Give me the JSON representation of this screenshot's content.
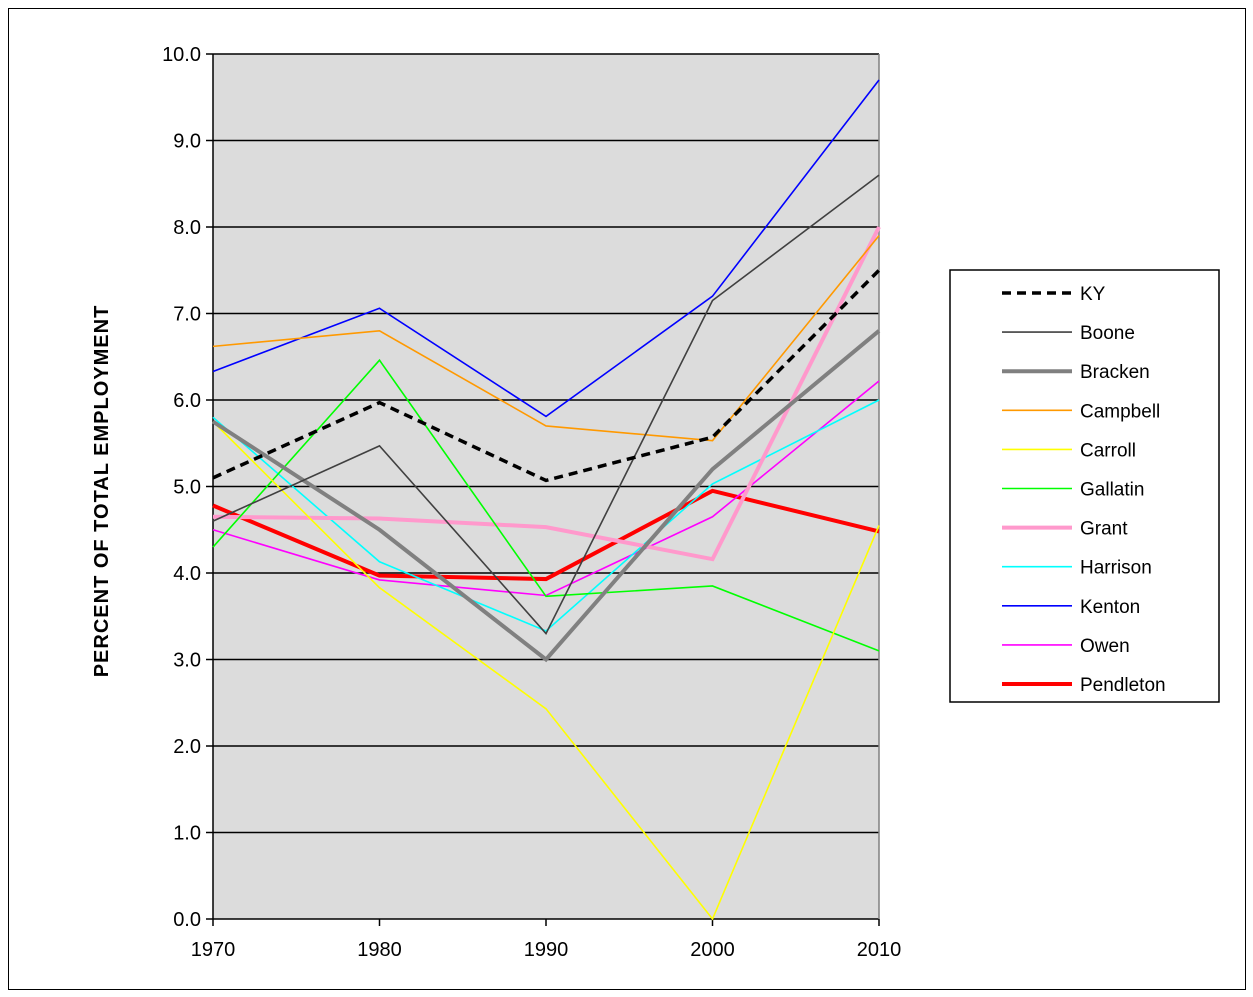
{
  "chart_data": {
    "type": "line",
    "title": "",
    "xlabel": "",
    "ylabel": "PERCENT OF TOTAL EMPLOYMENT",
    "x": [
      1970,
      1980,
      1990,
      2000,
      2010
    ],
    "x_tick_labels": [
      "1970",
      "1980",
      "1990",
      "2000",
      "2010"
    ],
    "y_tick_labels": [
      "0.0",
      "1.0",
      "2.0",
      "3.0",
      "4.0",
      "5.0",
      "6.0",
      "7.0",
      "8.0",
      "9.0",
      "10.0"
    ],
    "ylim": [
      0,
      10
    ],
    "grid": "horizontal",
    "plot_background": "#dcdcdc",
    "legend_position": "right",
    "series": [
      {
        "name": "KY",
        "values": [
          5.1,
          5.97,
          5.07,
          5.57,
          7.5
        ],
        "color": "#000000",
        "style": "dashed",
        "weight": "bold"
      },
      {
        "name": "Boone",
        "values": [
          4.6,
          5.47,
          3.3,
          7.15,
          8.6
        ],
        "color": "#404040",
        "style": "solid",
        "weight": "thin"
      },
      {
        "name": "Bracken",
        "values": [
          5.75,
          4.5,
          3.0,
          5.2,
          6.8
        ],
        "color": "#808080",
        "style": "solid",
        "weight": "bold"
      },
      {
        "name": "Campbell",
        "values": [
          6.62,
          6.8,
          5.7,
          5.53,
          7.9
        ],
        "color": "#ff9900",
        "style": "solid",
        "weight": "thin"
      },
      {
        "name": "Carroll",
        "values": [
          5.75,
          3.83,
          2.43,
          0.0,
          4.55
        ],
        "color": "#ffff00",
        "style": "solid",
        "weight": "thin"
      },
      {
        "name": "Gallatin",
        "values": [
          4.3,
          6.46,
          3.73,
          3.85,
          3.1
        ],
        "color": "#00ff00",
        "style": "solid",
        "weight": "thin"
      },
      {
        "name": "Grant",
        "values": [
          4.65,
          4.63,
          4.53,
          4.16,
          8.0
        ],
        "color": "#ff99cc",
        "style": "solid",
        "weight": "bold"
      },
      {
        "name": "Harrison",
        "values": [
          5.8,
          4.13,
          3.33,
          5.03,
          6.0
        ],
        "color": "#00ffff",
        "style": "solid",
        "weight": "thin"
      },
      {
        "name": "Kenton",
        "values": [
          6.33,
          7.06,
          5.81,
          7.2,
          9.7
        ],
        "color": "#0000ff",
        "style": "solid",
        "weight": "thin"
      },
      {
        "name": "Owen",
        "values": [
          4.5,
          3.92,
          3.74,
          4.65,
          6.22
        ],
        "color": "#ff00ff",
        "style": "solid",
        "weight": "thin"
      },
      {
        "name": "Pendleton",
        "values": [
          4.78,
          3.97,
          3.93,
          4.95,
          4.48
        ],
        "color": "#ff0000",
        "style": "solid",
        "weight": "bold"
      }
    ]
  }
}
